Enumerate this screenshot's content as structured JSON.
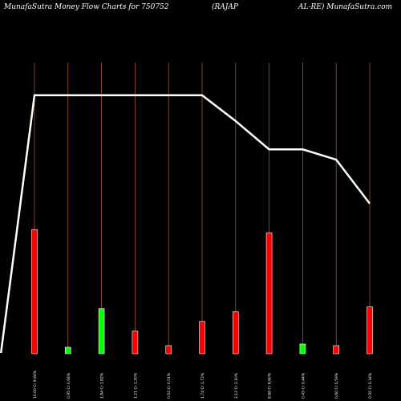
{
  "header": {
    "left": "MunafaSutra  Money Flow  Charts for 750752",
    "mid": "(RAJAP",
    "right": "AL-RE) MunafaSutra.com"
  },
  "colors": {
    "background": "#000000",
    "bar_up": "#00ff00",
    "bar_down": "#ff0000",
    "bar_outline": "#ffffff",
    "gridline": "#a0522d",
    "price_line": "#ffffff"
  },
  "chart_data": {
    "type": "bar",
    "categories": [
      "10.00 Cr 9.94%",
      "0.95 Cr 0.94%",
      "1.84 Cr 1.82%",
      "1.21 Cr 1.20%",
      "0.52 Cr 0.51%",
      "1.74 Cr 1.72%",
      "2.12 Cr 2.10%",
      "8.68 Cr 8.60%",
      "0.45 Cr 0.44%",
      "0.60 Cr 0.59%",
      "0.35 Cr 0.34%"
    ],
    "series": [
      {
        "values": [
          7.7,
          0.4,
          2.8,
          1.4,
          0.5,
          2.0,
          2.6,
          7.5,
          0.6,
          0.5,
          2.9
        ],
        "directions": [
          "down",
          "up",
          "up",
          "down",
          "down",
          "down",
          "down",
          "down",
          "up",
          "down",
          "down"
        ]
      }
    ],
    "line": [
      {
        "x": -1,
        "y": 0
      },
      {
        "x": 0,
        "y": 100
      },
      {
        "x": 5,
        "y": 100
      },
      {
        "x": 6,
        "y": 90
      },
      {
        "x": 7,
        "y": 79
      },
      {
        "x": 8,
        "y": 79
      },
      {
        "x": 9,
        "y": 75
      },
      {
        "x": 10,
        "y": 58
      }
    ],
    "ylim": [
      0,
      10
    ],
    "grid": true,
    "legend": "none"
  }
}
